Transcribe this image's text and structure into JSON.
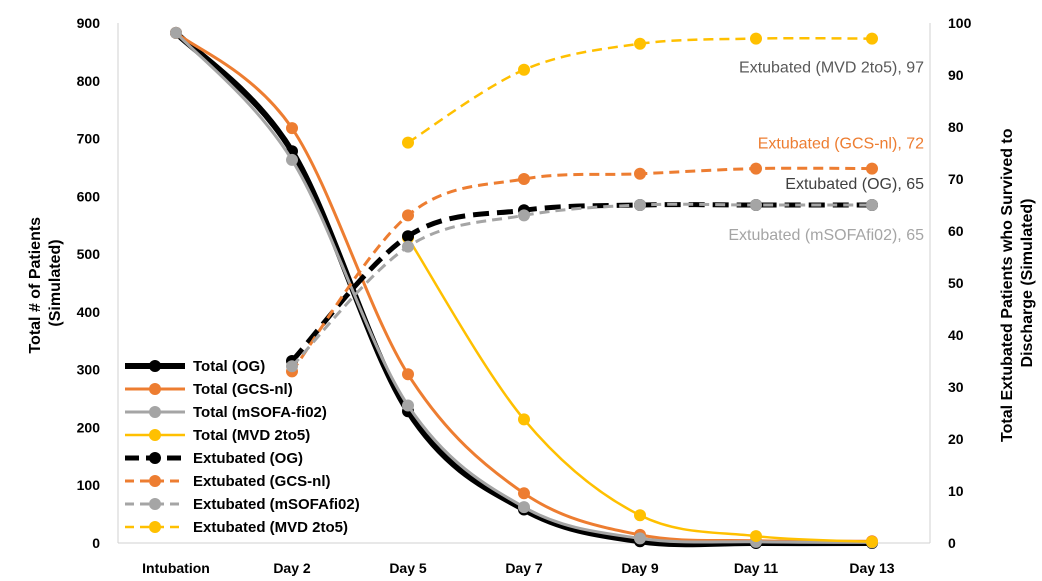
{
  "chart_data": {
    "type": "line",
    "categories": [
      "Intubation",
      "Day 2",
      "Day 5",
      "Day 7",
      "Day 9",
      "Day 11",
      "Day 13"
    ],
    "ylabel_left": [
      "Total # of Patients",
      "(Simulated)"
    ],
    "ylabel_right": [
      "Total Extubated Patients who Survived to",
      "Discharge (Simulated)"
    ],
    "ylim_left": [
      0,
      900
    ],
    "yticks_left": [
      "0",
      "100",
      "200",
      "300",
      "400",
      "500",
      "600",
      "700",
      "800",
      "900"
    ],
    "ylim_right": [
      0,
      100
    ],
    "yticks_right": [
      "0",
      "10",
      "20",
      "30",
      "40",
      "50",
      "60",
      "70",
      "80",
      "90",
      "100"
    ],
    "series": [
      {
        "name": "Total (OG)",
        "axis": "left",
        "style": "solid",
        "color": "#000000",
        "width": 6,
        "values": [
          883,
          678,
          228,
          58,
          3,
          0,
          0
        ]
      },
      {
        "name": "Total (GCS-nl)",
        "axis": "left",
        "style": "solid",
        "color": "#ED7D31",
        "width": 3,
        "values": [
          883,
          718,
          292,
          86,
          14,
          4,
          3
        ]
      },
      {
        "name": "Total (mSOFA-fi02)",
        "axis": "left",
        "style": "solid",
        "color": "#A5A5A5",
        "width": 3,
        "values": [
          883,
          663,
          238,
          62,
          8,
          2,
          1
        ]
      },
      {
        "name": "Total (MVD 2to5)",
        "axis": "left",
        "style": "solid",
        "color": "#FFC000",
        "width": 2.5,
        "values": [
          null,
          null,
          528,
          214,
          48,
          12,
          2
        ]
      },
      {
        "name": "Extubated (OG)",
        "axis": "right",
        "style": "dashed",
        "color": "#000000",
        "width": 5,
        "values": [
          null,
          35,
          59,
          64,
          65,
          65,
          65
        ]
      },
      {
        "name": "Extubated (GCS-nl)",
        "axis": "right",
        "style": "dashed",
        "color": "#ED7D31",
        "width": 3,
        "values": [
          null,
          33,
          63,
          70,
          71,
          72,
          72
        ]
      },
      {
        "name": "Extubated (mSOFAfi02)",
        "axis": "right",
        "style": "dashed",
        "color": "#A5A5A5",
        "width": 3,
        "values": [
          null,
          34,
          57,
          63,
          65,
          65,
          65
        ]
      },
      {
        "name": "Extubated (MVD 2to5)",
        "axis": "right",
        "style": "dashed",
        "color": "#FFC000",
        "width": 2.5,
        "values": [
          null,
          null,
          77,
          91,
          96,
          97,
          97
        ]
      }
    ],
    "annotations": [
      {
        "text": "Extubated (MVD 2to5), 97",
        "color": "#595959",
        "series": "Extubated (MVD 2to5)"
      },
      {
        "text": "Extubated (GCS-nl), 72",
        "color": "#ED7D31",
        "series": "Extubated (GCS-nl)"
      },
      {
        "text": "Extubated (OG), 65",
        "color": "#404040",
        "series": "Extubated (OG)"
      },
      {
        "text": "Extubated (mSOFAfi02), 65",
        "color": "#A5A5A5",
        "series": "Extubated (mSOFAfi02)"
      }
    ],
    "legend_position": "bottom-left",
    "grid": false
  }
}
